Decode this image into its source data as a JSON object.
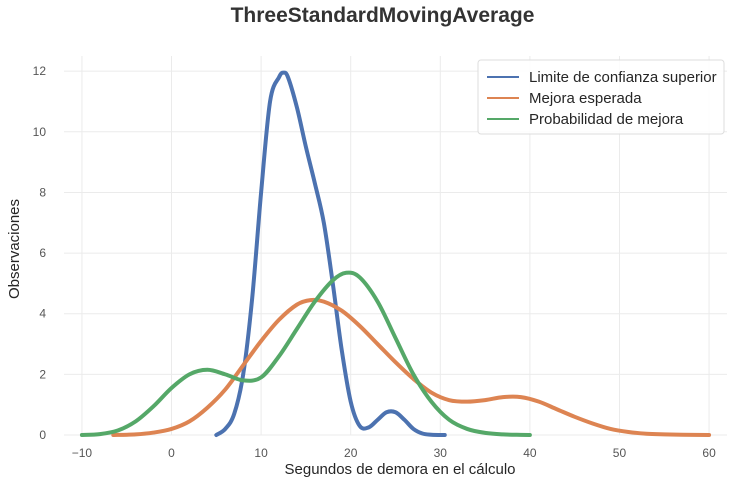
{
  "chart_data": {
    "type": "line",
    "title": "ThreeStandardMovingAverage",
    "xlabel": "Segundos de demora en el cálculo",
    "ylabel": "Observaciones",
    "xlim": [
      -12,
      62
    ],
    "ylim": [
      0,
      12.5
    ],
    "xticks": [
      -10,
      0,
      10,
      20,
      30,
      40,
      50,
      60
    ],
    "yticks": [
      0,
      2,
      4,
      6,
      8,
      10,
      12
    ],
    "grid": true,
    "legend_position": "top-right",
    "series": [
      {
        "name": "Limite de confianza superior",
        "color": "#4c72b0",
        "x": [
          5.0,
          6.0,
          7.0,
          8.0,
          9.0,
          10.0,
          11.0,
          12.0,
          12.5,
          13.0,
          14.0,
          15.0,
          16.0,
          17.0,
          18.0,
          19.0,
          20.0,
          21.0,
          22.0,
          23.0,
          24.0,
          25.0,
          26.0,
          27.0,
          28.0,
          29.0,
          30.5
        ],
        "y": [
          0.0,
          0.2,
          0.7,
          2.0,
          4.5,
          8.0,
          11.0,
          11.8,
          11.95,
          11.8,
          10.8,
          9.5,
          8.3,
          7.0,
          5.0,
          2.8,
          1.1,
          0.3,
          0.25,
          0.5,
          0.75,
          0.75,
          0.5,
          0.2,
          0.05,
          0.01,
          0.0
        ]
      },
      {
        "name": "Mejora esperada",
        "color": "#dd8452",
        "x": [
          -6.5,
          -4.0,
          -2.0,
          0.0,
          2.0,
          4.0,
          6.0,
          8.0,
          10.0,
          12.0,
          14.0,
          15.5,
          17.0,
          19.0,
          21.0,
          23.0,
          25.0,
          27.0,
          29.0,
          31.0,
          33.0,
          35.0,
          37.0,
          39.0,
          41.0,
          43.0,
          45.0,
          47.0,
          49.0,
          51.0,
          53.0,
          55.0,
          57.0,
          60.0
        ],
        "y": [
          0.0,
          0.02,
          0.08,
          0.2,
          0.45,
          0.9,
          1.5,
          2.3,
          3.1,
          3.8,
          4.3,
          4.45,
          4.4,
          4.1,
          3.6,
          3.0,
          2.4,
          1.85,
          1.4,
          1.15,
          1.1,
          1.15,
          1.25,
          1.25,
          1.1,
          0.85,
          0.6,
          0.38,
          0.2,
          0.1,
          0.04,
          0.02,
          0.01,
          0.0
        ]
      },
      {
        "name": "Probabilidad de mejora",
        "color": "#55a868",
        "x": [
          -10.0,
          -8.0,
          -6.0,
          -4.0,
          -2.0,
          0.0,
          2.0,
          4.0,
          6.0,
          8.0,
          10.0,
          12.0,
          14.0,
          16.0,
          18.0,
          19.5,
          21.0,
          23.0,
          25.0,
          27.0,
          29.0,
          31.0,
          33.0,
          35.0,
          37.0,
          39.0,
          40.0
        ],
        "y": [
          0.0,
          0.03,
          0.15,
          0.45,
          0.95,
          1.55,
          2.0,
          2.15,
          2.0,
          1.8,
          1.9,
          2.6,
          3.5,
          4.4,
          5.1,
          5.35,
          5.2,
          4.4,
          3.2,
          2.0,
          1.1,
          0.5,
          0.2,
          0.07,
          0.02,
          0.005,
          0.0
        ]
      }
    ]
  }
}
